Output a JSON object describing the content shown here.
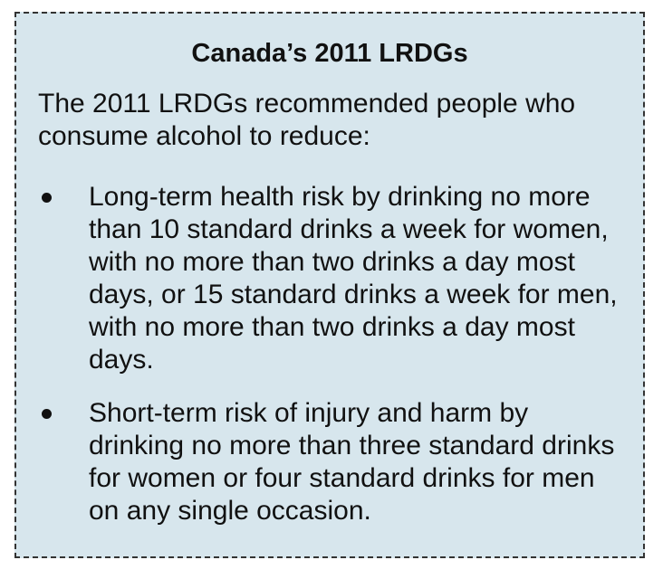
{
  "box": {
    "title": "Canada’s 2011 LRDGs",
    "intro": "The 2011 LRDGs recommended people who consume alcohol to reduce:",
    "bullets": [
      "Long-term health risk by drinking no more than 10 standard drinks a week for women, with no more than two drinks a day most days, or 15 standard drinks a week for men, with no more than two drinks a day most days.",
      "Short-term risk of injury and harm by drinking no more than three standard drinks for women or four standard drinks for men on any single occasion."
    ]
  }
}
